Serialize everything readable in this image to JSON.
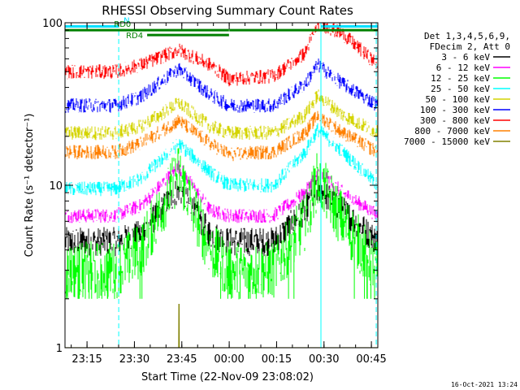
{
  "chart_data": {
    "type": "line",
    "title": "RHESSI Observing Summary Count Rates",
    "xlabel": "Start Time (22-Nov-09 23:08:02)",
    "ylabel": "Count Rate (s⁻¹ detector⁻¹)",
    "y_scale": "log",
    "ylim": [
      1,
      100
    ],
    "xlim_minutes": [
      0,
      99
    ],
    "x_ticks": [
      {
        "label": "23:15",
        "minutes": 6.97
      },
      {
        "label": "23:30",
        "minutes": 21.97
      },
      {
        "label": "23:45",
        "minutes": 36.97
      },
      {
        "label": "00:00",
        "minutes": 51.97
      },
      {
        "label": "00:15",
        "minutes": 66.97
      },
      {
        "label": "00:30",
        "minutes": 81.97
      },
      {
        "label": "00:45",
        "minutes": 96.97
      }
    ],
    "y_ticks": [
      {
        "label": "1",
        "value": 1
      },
      {
        "label": "10",
        "value": 10
      },
      {
        "label": "100",
        "value": 100
      }
    ],
    "legend": {
      "placement": "right",
      "header": [
        "Det 1,3,4,5,6,9,",
        "FDecim 2, Att 0"
      ]
    },
    "series": [
      {
        "name": "3 - 6 keV",
        "color": "#000000",
        "x": [
          0,
          16,
          24,
          36,
          46,
          51.9,
          52,
          66,
          76,
          80,
          88,
          99
        ],
        "y": [
          4.5,
          4.5,
          5,
          9.5,
          5,
          4.5,
          4.5,
          4.5,
          7,
          9.5,
          7,
          4.5
        ]
      },
      {
        "name": "6 - 12 keV",
        "color": "#ff00ff",
        "x": [
          0,
          16,
          24,
          36,
          46,
          51.9,
          52,
          66,
          76,
          80,
          88,
          99
        ],
        "y": [
          6.5,
          6.5,
          7.5,
          13,
          7,
          6.5,
          6.5,
          6.5,
          9,
          12,
          9,
          6.5
        ]
      },
      {
        "name": "12 - 25 keV",
        "color": "#00ff00",
        "x": [
          0,
          16,
          24,
          36,
          46,
          51.9,
          52,
          66,
          76,
          80,
          88,
          99
        ],
        "y": [
          3,
          3,
          4,
          12,
          4,
          3,
          3,
          3,
          6,
          11,
          6,
          3
        ]
      },
      {
        "name": "25 - 50 keV",
        "color": "#00ffff",
        "x": [
          0,
          16,
          24,
          36,
          46,
          51.9,
          52,
          66,
          76,
          80,
          88,
          99
        ],
        "y": [
          9.5,
          9.5,
          11,
          18,
          12,
          10,
          10,
          10,
          16,
          22,
          16,
          10
        ]
      },
      {
        "name": "50 - 100 keV",
        "color": "#d4d400",
        "x": [
          0,
          16,
          24,
          36,
          46,
          51.9,
          52,
          66,
          76,
          80,
          88,
          99
        ],
        "y": [
          21,
          21,
          23,
          32,
          23,
          21,
          21,
          21,
          27,
          36,
          27,
          21
        ]
      },
      {
        "name": "100 - 300 keV",
        "color": "#0000ff",
        "x": [
          0,
          16,
          24,
          36,
          46,
          51.9,
          52,
          66,
          76,
          80,
          88,
          99
        ],
        "y": [
          31,
          31,
          35,
          52,
          36,
          31,
          31,
          31,
          42,
          55,
          42,
          31
        ]
      },
      {
        "name": "300 - 800 keV",
        "color": "#ff0000",
        "x": [
          0,
          16,
          24,
          36,
          46,
          51.9,
          52,
          66,
          76,
          80,
          88,
          99
        ],
        "y": [
          50,
          50,
          55,
          68,
          55,
          45,
          45,
          47,
          65,
          100,
          85,
          55
        ]
      },
      {
        "name": "800 - 7000 keV",
        "color": "#ff8000",
        "x": [
          0,
          16,
          24,
          36,
          46,
          51.9,
          52,
          66,
          76,
          80,
          88,
          99
        ],
        "y": [
          16,
          16,
          18,
          25,
          18,
          15.5,
          15.5,
          16,
          21,
          27,
          21,
          16
        ]
      },
      {
        "name": "7000 - 15000 keV",
        "color": "#808000",
        "x": [
          0,
          36,
          36.05,
          36.1,
          36.15,
          99
        ],
        "y": [
          1,
          1,
          1.85,
          1.85,
          1,
          1
        ]
      }
    ],
    "flags": [
      {
        "label": "N",
        "color": "#00e0ff",
        "x_start": 0,
        "x_end": 17,
        "level": 95
      },
      {
        "label": "",
        "color": "#00e0ff",
        "x_start": 81,
        "x_end": 99,
        "level": 95
      },
      {
        "label": "RD0",
        "color": "#008000",
        "x_start": 0,
        "x_end": 51.9,
        "level": 90
      },
      {
        "label": "",
        "color": "#008000",
        "x_start": 52,
        "x_end": 99,
        "level": 90
      },
      {
        "label": "RD4",
        "color": "#008000",
        "x_start": 26,
        "x_end": 51.9,
        "level": 84
      }
    ],
    "vertical_markers": [
      {
        "x": 0,
        "style": "solid",
        "color": "#00ffff"
      },
      {
        "x": 17,
        "style": "dashed",
        "color": "#00ffff"
      },
      {
        "x": 81,
        "style": "solid",
        "color": "#00ffff"
      },
      {
        "x": 98.5,
        "style": "dashed",
        "color": "#00ffff"
      }
    ]
  },
  "footer": {
    "timestamp": "16-Oct-2021 13:24"
  }
}
